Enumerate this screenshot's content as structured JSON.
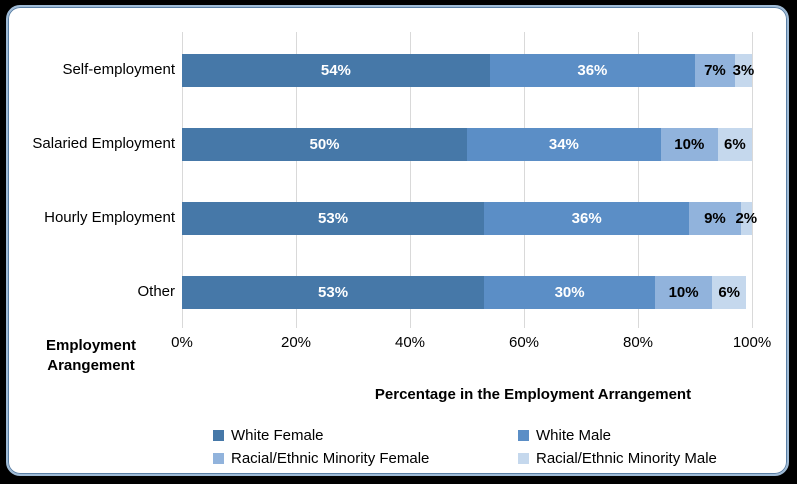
{
  "chart_data": {
    "type": "bar",
    "stacked": true,
    "orientation": "horizontal",
    "xlabel": "Percentage in the Employment Arrangement",
    "ylabel_lines": [
      "Employment",
      "Arangement"
    ],
    "categories": [
      "Self-employment",
      "Salaried Employment",
      "Hourly Employment",
      "Other"
    ],
    "series": [
      {
        "name": "White Female",
        "color": "#4678A8",
        "label_color": "#ffffff",
        "values": [
          54,
          50,
          53,
          53
        ]
      },
      {
        "name": "White Male",
        "color": "#5B8EC6",
        "label_color": "#ffffff",
        "values": [
          36,
          34,
          36,
          30
        ]
      },
      {
        "name": "Racial/Ethnic Minority Female",
        "color": "#91B3DC",
        "label_color": "#000000",
        "values": [
          7,
          10,
          9,
          10
        ]
      },
      {
        "name": "Racial/Ethnic Minority Male",
        "color": "#C5D8ED",
        "label_color": "#000000",
        "values": [
          3,
          6,
          2,
          6
        ]
      }
    ],
    "value_suffix": "%",
    "x_ticks": [
      "0%",
      "20%",
      "40%",
      "60%",
      "80%",
      "100%"
    ],
    "xlim": [
      0,
      100
    ],
    "gridlines": "vertical",
    "legend_position": "bottom",
    "legend_columns": [
      [
        "White Female",
        "Racial/Ethnic Minority Female"
      ],
      [
        "White Male",
        "Racial/Ethnic Minority Male"
      ]
    ]
  },
  "frame": {
    "background": "#000000",
    "panel_background": "#FFFFFF",
    "panel_border": "#9FBBD6"
  }
}
